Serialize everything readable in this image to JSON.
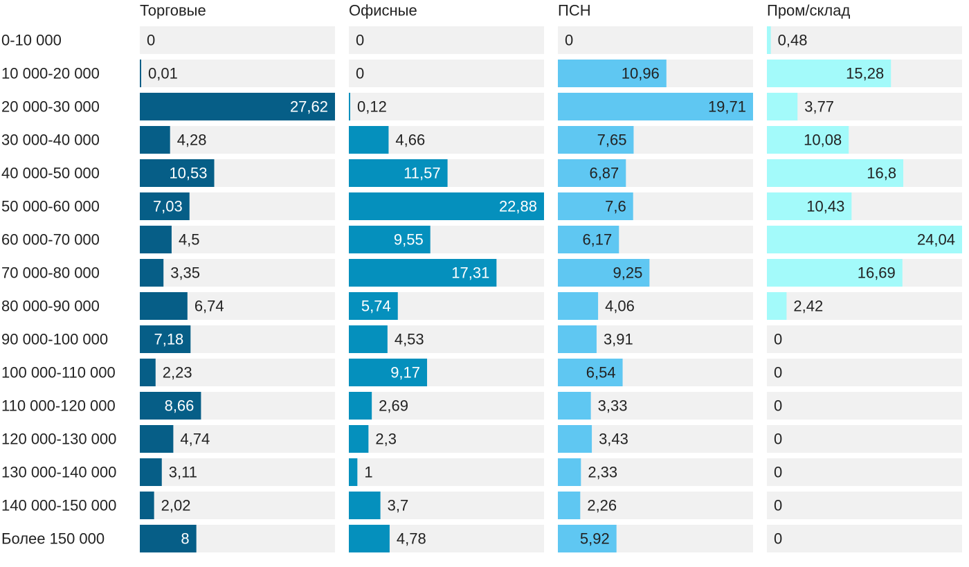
{
  "chart_data": {
    "type": "bar",
    "categories": [
      "0-10 000",
      "10 000-20 000",
      "20 000-30 000",
      "30 000-40 000",
      "40 000-50 000",
      "50 000-60 000",
      "60 000-70 000",
      "70 000-80 000",
      "80 000-90 000",
      "90 000-100 000",
      "100 000-110 000",
      "110 000-120 000",
      "120 000-130 000",
      "130 000-140 000",
      "140 000-150 000",
      "Более 150 000"
    ],
    "series": [
      {
        "name": "Торговые",
        "color": "#065e87",
        "values": [
          0,
          0.01,
          27.62,
          4.28,
          10.53,
          7.03,
          4.5,
          3.35,
          6.74,
          7.18,
          2.23,
          8.66,
          4.74,
          3.11,
          2.02,
          8
        ],
        "labels": [
          "0",
          "0,01",
          "27,62",
          "4,28",
          "10,53",
          "7,03",
          "4,5",
          "3,35",
          "6,74",
          "7,18",
          "2,23",
          "8,66",
          "4,74",
          "3,11",
          "2,02",
          "8"
        ]
      },
      {
        "name": "Офисные",
        "color": "#0590bd",
        "values": [
          0,
          0,
          0.12,
          4.66,
          11.57,
          22.88,
          9.55,
          17.31,
          5.74,
          4.53,
          9.17,
          2.69,
          2.3,
          1,
          3.7,
          4.78
        ],
        "labels": [
          "0",
          "0",
          "0,12",
          "4,66",
          "11,57",
          "22,88",
          "9,55",
          "17,31",
          "5,74",
          "4,53",
          "9,17",
          "2,69",
          "2,3",
          "1",
          "3,7",
          "4,78"
        ]
      },
      {
        "name": "ПСН",
        "color": "#5fc7f2",
        "values": [
          0,
          10.96,
          19.71,
          7.65,
          6.87,
          7.6,
          6.17,
          9.25,
          4.06,
          3.91,
          6.54,
          3.33,
          3.43,
          2.33,
          2.26,
          5.92
        ],
        "labels": [
          "0",
          "10,96",
          "19,71",
          "7,65",
          "6,87",
          "7,6",
          "6,17",
          "9,25",
          "4,06",
          "3,91",
          "6,54",
          "3,33",
          "3,43",
          "2,33",
          "2,26",
          "5,92"
        ]
      },
      {
        "name": "Пром/склад",
        "color": "#a3fafa",
        "values": [
          0.48,
          15.28,
          3.77,
          10.08,
          16.8,
          10.43,
          24.04,
          16.69,
          2.42,
          0,
          0,
          0,
          0,
          0,
          0,
          0
        ],
        "labels": [
          "0,48",
          "15,28",
          "3,77",
          "10,08",
          "16,8",
          "10,43",
          "24,04",
          "16,69",
          "2,42",
          "0",
          "0",
          "0",
          "0",
          "0",
          "0",
          "0"
        ]
      }
    ],
    "xlim_per_panel": [
      [
        0,
        27.62
      ],
      [
        0,
        22.88
      ],
      [
        0,
        19.71
      ],
      [
        0,
        24.04
      ]
    ],
    "label_colors": {
      "inside_dark_bar": "#ffffff",
      "inside_light_bar": "#222222",
      "outside_bar": "#222222"
    },
    "track_color": "#f1f1f1",
    "grid": false,
    "legend": "none"
  }
}
